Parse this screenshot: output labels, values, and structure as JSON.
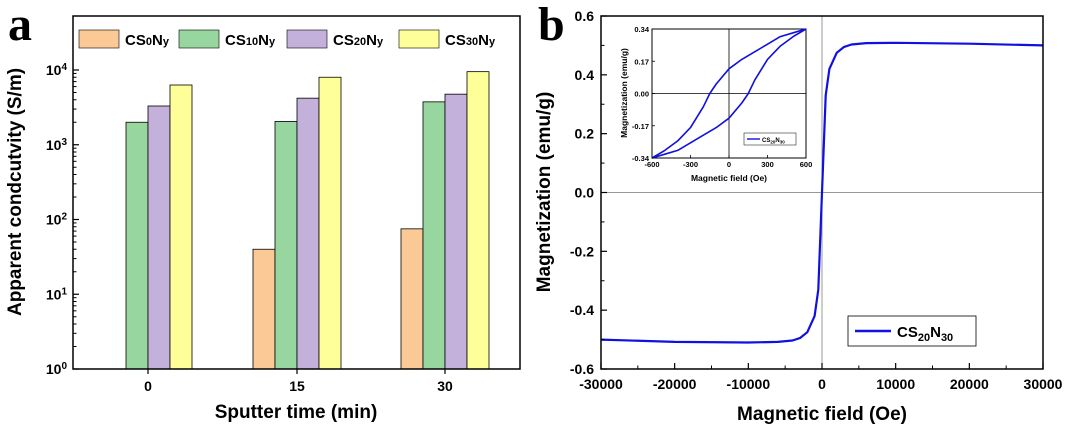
{
  "panels": {
    "a": "a",
    "b": "b"
  },
  "chart_data": [
    {
      "type": "bar",
      "panel": "a",
      "xlabel": "Sputter time (min)",
      "ylabel": "Apparent condcutvity (S/m)",
      "yscale": "log",
      "ylim": [
        1,
        10000
      ],
      "categories": [
        "0",
        "15",
        "30"
      ],
      "series": [
        {
          "name": "CS0Ny",
          "name_parts": [
            "CS",
            "0",
            "N",
            "y"
          ],
          "color": "#FBC996",
          "values": [
            null,
            40,
            75
          ]
        },
        {
          "name": "CS10Ny",
          "name_parts": [
            "CS",
            "10",
            "N",
            "y"
          ],
          "color": "#97D79F",
          "values": [
            2000,
            2050,
            3750
          ]
        },
        {
          "name": "CS20Ny",
          "name_parts": [
            "CS",
            "20",
            "N",
            "y"
          ],
          "color": "#C3B1DB",
          "values": [
            3300,
            4200,
            4750
          ]
        },
        {
          "name": "CS30Ny",
          "name_parts": [
            "CS",
            "30",
            "N",
            "y"
          ],
          "color": "#FFFF99",
          "values": [
            6300,
            8000,
            9500
          ]
        }
      ],
      "yticks": [
        {
          "value": 1,
          "base": "10",
          "exp": "0"
        },
        {
          "value": 10,
          "base": "10",
          "exp": "1"
        },
        {
          "value": 100,
          "base": "10",
          "exp": "2"
        },
        {
          "value": 1000,
          "base": "10",
          "exp": "3"
        },
        {
          "value": 10000,
          "base": "10",
          "exp": "4"
        }
      ],
      "legend_position": "top",
      "grid": false
    },
    {
      "type": "line",
      "panel": "b",
      "xlabel": "Magnetic field (Oe)",
      "ylabel": "Magnetization (emu/g)",
      "xlim": [
        -30000,
        30000
      ],
      "ylim": [
        -0.6,
        0.6
      ],
      "xticks": [
        "-30000",
        "-20000",
        "-10000",
        "0",
        "10000",
        "20000",
        "30000"
      ],
      "yticks": [
        "-0.6",
        "-0.4",
        "-0.2",
        "0.0",
        "0.2",
        "0.4",
        "0.6"
      ],
      "legend_position": "bottom-right",
      "series": [
        {
          "name": "CS20N30",
          "name_parts": [
            "CS",
            "20",
            "N",
            "30"
          ],
          "color": "#1010E0",
          "x": [
            -30000,
            -20000,
            -10000,
            -6000,
            -4000,
            -3000,
            -2000,
            -1000,
            -500,
            0,
            500,
            1000,
            2000,
            3000,
            4000,
            6000,
            10000,
            20000,
            30000
          ],
          "y": [
            -0.5,
            -0.508,
            -0.51,
            -0.508,
            -0.503,
            -0.495,
            -0.475,
            -0.42,
            -0.33,
            0.0,
            0.33,
            0.42,
            0.475,
            0.495,
            0.503,
            0.508,
            0.509,
            0.506,
            0.5
          ]
        }
      ],
      "inset": {
        "xlabel": "Magnetic field (Oe)",
        "ylabel": "Magnetization (emu/g)",
        "xlim": [
          -600,
          600
        ],
        "ylim": [
          -0.34,
          0.34
        ],
        "xticks": [
          "-600",
          "-300",
          "0",
          "300",
          "600"
        ],
        "yticks": [
          "-0.34",
          "-0.17",
          "0.00",
          "0.17",
          "0.34"
        ],
        "legend_position": "bottom-right",
        "series_name_parts": [
          "CS",
          "20",
          "N",
          "30"
        ],
        "color": "#1010E0",
        "upper_branch": {
          "x": [
            -600,
            -500,
            -400,
            -300,
            -200,
            -150,
            -100,
            0,
            100,
            200,
            300,
            400,
            500,
            600
          ],
          "y": [
            -0.34,
            -0.3,
            -0.25,
            -0.18,
            -0.07,
            0.0,
            0.05,
            0.13,
            0.18,
            0.22,
            0.26,
            0.3,
            0.32,
            0.34
          ]
        },
        "lower_branch": {
          "x": [
            600,
            500,
            400,
            300,
            200,
            150,
            100,
            0,
            -100,
            -200,
            -300,
            -400,
            -500,
            -600
          ],
          "y": [
            0.34,
            0.3,
            0.25,
            0.18,
            0.07,
            0.0,
            -0.05,
            -0.13,
            -0.18,
            -0.22,
            -0.26,
            -0.3,
            -0.32,
            -0.34
          ]
        }
      }
    }
  ]
}
